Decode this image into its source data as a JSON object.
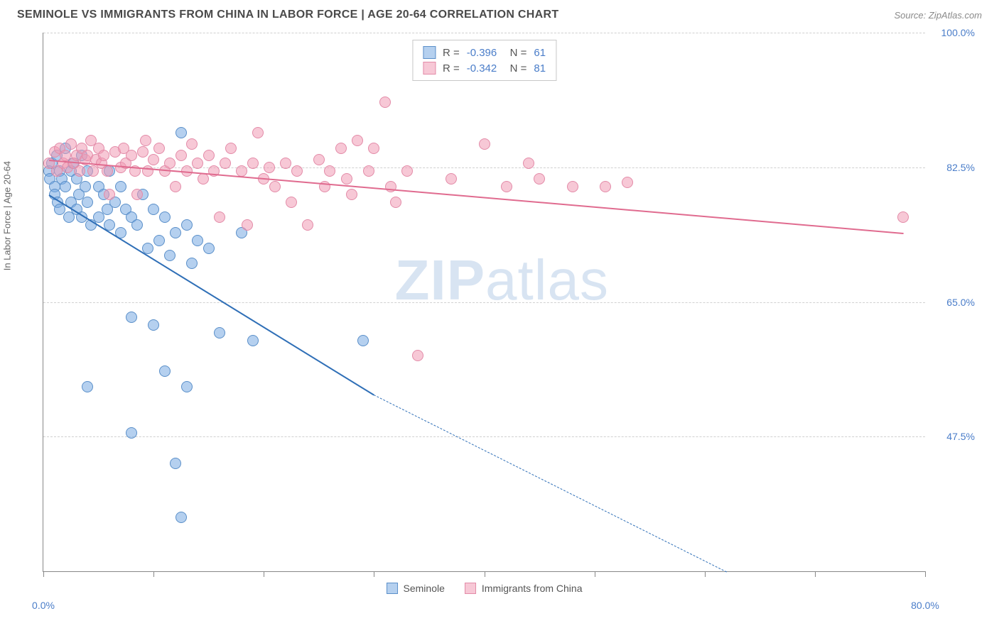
{
  "title": "SEMINOLE VS IMMIGRANTS FROM CHINA IN LABOR FORCE | AGE 20-64 CORRELATION CHART",
  "source": "Source: ZipAtlas.com",
  "y_axis_label": "In Labor Force | Age 20-64",
  "watermark_a": "ZIP",
  "watermark_b": "atlas",
  "chart": {
    "type": "scatter",
    "xlim": [
      0,
      80
    ],
    "ylim": [
      30,
      100
    ],
    "x_ticks": [
      0,
      10,
      20,
      30,
      40,
      50,
      60,
      70,
      80
    ],
    "x_tick_labels": {
      "0": "0.0%",
      "80": "80.0%"
    },
    "y_ticks": [
      47.5,
      65.0,
      82.5,
      100.0
    ],
    "y_tick_labels": [
      "47.5%",
      "65.0%",
      "82.5%",
      "100.0%"
    ],
    "grid_color": "#d0d0d0",
    "background_color": "#ffffff",
    "axis_color": "#888888",
    "tick_label_color": "#4a7dc9",
    "marker_radius": 8,
    "series": [
      {
        "name": "Seminole",
        "fill_color": "rgba(120,170,225,0.55)",
        "stroke_color": "#5a8fc9",
        "trend_color": "#2f6fb7",
        "r": "-0.396",
        "n": "61",
        "trend": {
          "x1": 0.5,
          "y1": 79,
          "x2": 30,
          "y2": 53,
          "dash_x2": 62,
          "dash_y2": 30
        },
        "points": [
          [
            0.5,
            82
          ],
          [
            0.6,
            81
          ],
          [
            0.8,
            83
          ],
          [
            1,
            80
          ],
          [
            1,
            79
          ],
          [
            1.2,
            84
          ],
          [
            1.3,
            78
          ],
          [
            1.5,
            82
          ],
          [
            1.5,
            77
          ],
          [
            1.7,
            81
          ],
          [
            2,
            85
          ],
          [
            2,
            80
          ],
          [
            2.3,
            76
          ],
          [
            2.5,
            82
          ],
          [
            2.5,
            78
          ],
          [
            2.7,
            83
          ],
          [
            3,
            81
          ],
          [
            3,
            77
          ],
          [
            3.2,
            79
          ],
          [
            3.5,
            84
          ],
          [
            3.5,
            76
          ],
          [
            3.8,
            80
          ],
          [
            4,
            82
          ],
          [
            4,
            78
          ],
          [
            4.3,
            75
          ],
          [
            4,
            54
          ],
          [
            5,
            80
          ],
          [
            5,
            76
          ],
          [
            5.5,
            79
          ],
          [
            5.8,
            77
          ],
          [
            6,
            82
          ],
          [
            6,
            75
          ],
          [
            6.5,
            78
          ],
          [
            7,
            80
          ],
          [
            7,
            74
          ],
          [
            7.5,
            77
          ],
          [
            8,
            76
          ],
          [
            8,
            63
          ],
          [
            8.5,
            75
          ],
          [
            9,
            79
          ],
          [
            9.5,
            72
          ],
          [
            10,
            77
          ],
          [
            10.5,
            73
          ],
          [
            11,
            76
          ],
          [
            11.5,
            71
          ],
          [
            12,
            74
          ],
          [
            12.5,
            87
          ],
          [
            13,
            75
          ],
          [
            13.5,
            70
          ],
          [
            14,
            73
          ],
          [
            8,
            48
          ],
          [
            10,
            62
          ],
          [
            11,
            56
          ],
          [
            12,
            44
          ],
          [
            12.5,
            37
          ],
          [
            13,
            54
          ],
          [
            15,
            72
          ],
          [
            16,
            61
          ],
          [
            18,
            74
          ],
          [
            19,
            60
          ],
          [
            29,
            60
          ]
        ]
      },
      {
        "name": "Immigrants from China",
        "fill_color": "rgba(240,155,180,0.55)",
        "stroke_color": "#e38ba8",
        "trend_color": "#e06b8f",
        "r": "-0.342",
        "n": "81",
        "trend": {
          "x1": 0.5,
          "y1": 83.5,
          "x2": 78,
          "y2": 74
        },
        "points": [
          [
            0.5,
            83
          ],
          [
            1,
            84.5
          ],
          [
            1.2,
            82
          ],
          [
            1.5,
            85
          ],
          [
            1.8,
            83
          ],
          [
            2,
            84
          ],
          [
            2.2,
            82.5
          ],
          [
            2.5,
            85.5
          ],
          [
            2.8,
            83
          ],
          [
            3,
            84
          ],
          [
            3.3,
            82
          ],
          [
            3.5,
            85
          ],
          [
            3.8,
            83.5
          ],
          [
            4,
            84
          ],
          [
            4.3,
            86
          ],
          [
            4.5,
            82
          ],
          [
            4.8,
            83.5
          ],
          [
            5,
            85
          ],
          [
            5.3,
            83
          ],
          [
            5.5,
            84
          ],
          [
            5.8,
            82
          ],
          [
            6,
            79
          ],
          [
            6.5,
            84.5
          ],
          [
            7,
            82.5
          ],
          [
            7.3,
            85
          ],
          [
            7.5,
            83
          ],
          [
            8,
            84
          ],
          [
            8.3,
            82
          ],
          [
            8.5,
            79
          ],
          [
            9,
            84.5
          ],
          [
            9.3,
            86
          ],
          [
            9.5,
            82
          ],
          [
            10,
            83.5
          ],
          [
            10.5,
            85
          ],
          [
            11,
            82
          ],
          [
            11.5,
            83
          ],
          [
            12,
            80
          ],
          [
            12.5,
            84
          ],
          [
            13,
            82
          ],
          [
            13.5,
            85.5
          ],
          [
            14,
            83
          ],
          [
            14.5,
            81
          ],
          [
            15,
            84
          ],
          [
            15.5,
            82
          ],
          [
            16,
            76
          ],
          [
            16.5,
            83
          ],
          [
            17,
            85
          ],
          [
            18,
            82
          ],
          [
            18.5,
            75
          ],
          [
            19,
            83
          ],
          [
            19.5,
            87
          ],
          [
            20,
            81
          ],
          [
            20.5,
            82.5
          ],
          [
            21,
            80
          ],
          [
            22,
            83
          ],
          [
            22.5,
            78
          ],
          [
            23,
            82
          ],
          [
            24,
            75
          ],
          [
            25,
            83.5
          ],
          [
            25.5,
            80
          ],
          [
            26,
            82
          ],
          [
            27,
            85
          ],
          [
            27.5,
            81
          ],
          [
            28,
            79
          ],
          [
            28.5,
            86
          ],
          [
            29.5,
            82
          ],
          [
            30,
            85
          ],
          [
            31,
            91
          ],
          [
            31.5,
            80
          ],
          [
            32,
            78
          ],
          [
            33,
            82
          ],
          [
            34,
            58
          ],
          [
            37,
            81
          ],
          [
            40,
            85.5
          ],
          [
            42,
            80
          ],
          [
            44,
            83
          ],
          [
            45,
            81
          ],
          [
            48,
            80
          ],
          [
            51,
            80
          ],
          [
            53,
            80.5
          ],
          [
            78,
            76
          ]
        ]
      }
    ]
  },
  "bottom_legend": [
    {
      "label": "Seminole",
      "fill": "rgba(120,170,225,0.55)",
      "stroke": "#5a8fc9"
    },
    {
      "label": "Immigrants from China",
      "fill": "rgba(240,155,180,0.55)",
      "stroke": "#e38ba8"
    }
  ]
}
